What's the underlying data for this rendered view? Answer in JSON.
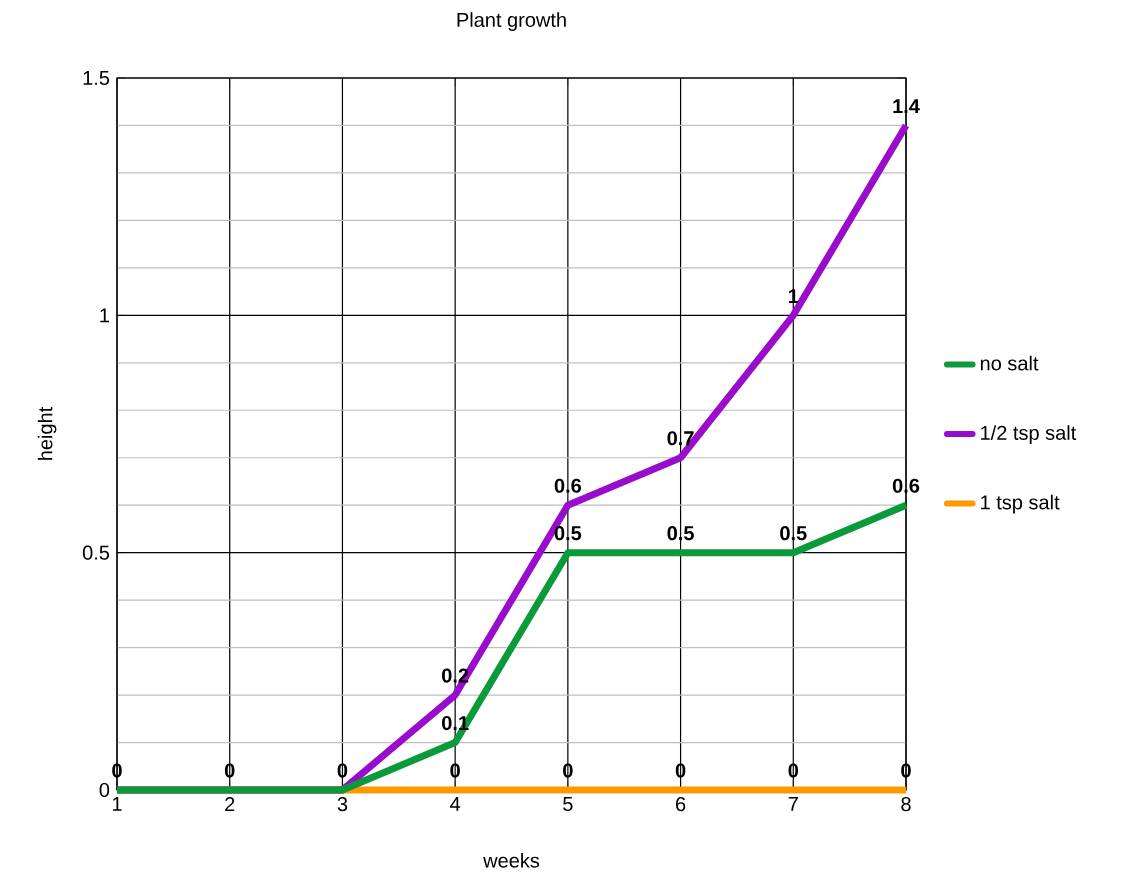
{
  "chart_data": {
    "type": "line",
    "title": "Plant growth",
    "xlabel": "weeks",
    "ylabel": "height",
    "x": [
      1,
      2,
      3,
      4,
      5,
      6,
      7,
      8
    ],
    "series": [
      {
        "name": "no salt",
        "color": "#0a9a3a",
        "values": [
          0,
          0,
          0,
          0.1,
          0.5,
          0.5,
          0.5,
          0.6
        ]
      },
      {
        "name": "1/2 tsp salt",
        "color": "#9a0ccc",
        "values": [
          0,
          0,
          0,
          0.2,
          0.6,
          0.7,
          1,
          1.4
        ],
        "value_labels": [
          null,
          null,
          null,
          "0.2",
          "0.6",
          "0.7",
          "1",
          "1.4"
        ]
      },
      {
        "name": "1 tsp salt",
        "color": "#ff9900",
        "values": [
          0,
          0,
          0,
          0,
          0,
          0,
          0,
          0
        ],
        "value_labels": [
          null,
          null,
          null,
          "0",
          "0",
          "0",
          "0",
          "0"
        ]
      }
    ],
    "xlim": [
      1,
      8
    ],
    "xticks": [
      1,
      2,
      3,
      4,
      5,
      6,
      7,
      8
    ],
    "ylim": [
      0,
      1.5
    ],
    "yticks": [
      0,
      0.5,
      1,
      1.5
    ],
    "grid": true,
    "legend": "right",
    "data_labels": true
  }
}
